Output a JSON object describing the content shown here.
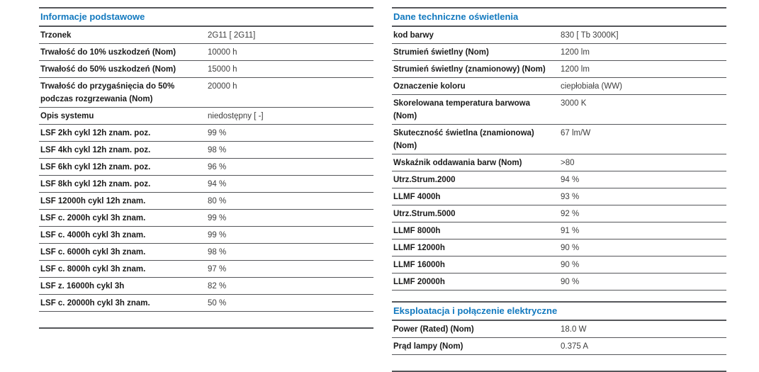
{
  "colors": {
    "header_blue": "#1279bf",
    "rule_gray": "#55565a",
    "label_color": "#1a1a1a",
    "value_color": "#3d3d3d",
    "background": "#ffffff"
  },
  "columns": [
    {
      "name": "left",
      "trailing_rule": true,
      "sections": [
        {
          "title": "Informacje podstawowe",
          "rows": [
            {
              "label": "Trzonek",
              "value": "2G11 [ 2G11]"
            },
            {
              "label": "Trwałość do 10% uszkodzeń (Nom)",
              "value": "10000 h"
            },
            {
              "label": "Trwałość do 50% uszkodzeń (Nom)",
              "value": "15000 h"
            },
            {
              "label": "Trwałość do przygaśnięcia do 50% podczas rozgrzewania (Nom)",
              "value": "20000 h"
            },
            {
              "label": "Opis systemu",
              "value": "niedostępny [ -]"
            },
            {
              "label": "LSF 2kh cykl 12h znam. poz.",
              "value": "99 %"
            },
            {
              "label": "LSF 4kh cykl 12h znam. poz.",
              "value": "98 %"
            },
            {
              "label": "LSF 6kh cykl 12h znam. poz.",
              "value": "96 %"
            },
            {
              "label": "LSF 8kh cykl 12h znam. poz.",
              "value": "94 %"
            },
            {
              "label": "LSF 12000h cykl 12h znam.",
              "value": "80 %"
            },
            {
              "label": "LSF c. 2000h cykl 3h znam.",
              "value": "99 %"
            },
            {
              "label": "LSF c. 4000h cykl 3h znam.",
              "value": "99 %"
            },
            {
              "label": "LSF c. 6000h cykl 3h znam.",
              "value": "98 %"
            },
            {
              "label": "LSF c. 8000h cykl 3h znam.",
              "value": "97 %"
            },
            {
              "label": "LSF z. 16000h cykl 3h",
              "value": "82 %"
            },
            {
              "label": "LSF c. 20000h cykl 3h znam.",
              "value": "50 %"
            }
          ]
        }
      ]
    },
    {
      "name": "right",
      "trailing_rule": true,
      "sections": [
        {
          "title": "Dane techniczne oświetlenia",
          "rows": [
            {
              "label": "kod barwy",
              "value": "830 [ Tb 3000K]"
            },
            {
              "label": "Strumień świetlny (Nom)",
              "value": "1200 lm"
            },
            {
              "label": "Strumień świetlny (znamionowy) (Nom)",
              "value": "1200 lm"
            },
            {
              "label": "Oznaczenie koloru",
              "value": "ciepłobiała (WW)"
            },
            {
              "label": "Skorelowana temperatura barwowa (Nom)",
              "value": "3000 K"
            },
            {
              "label": "Skuteczność świetlna (znamionowa) (Nom)",
              "value": "67 lm/W"
            },
            {
              "label": "Wskaźnik oddawania barw (Nom)",
              "value": ">80"
            },
            {
              "label": "Utrz.Strum.2000",
              "value": "94 %"
            },
            {
              "label": "LLMF 4000h",
              "value": "93 %"
            },
            {
              "label": "Utrz.Strum.5000",
              "value": "92 %"
            },
            {
              "label": "LLMF 8000h",
              "value": "91 %"
            },
            {
              "label": "LLMF 12000h",
              "value": "90 %"
            },
            {
              "label": "LLMF 16000h",
              "value": "90 %"
            },
            {
              "label": "LLMF 20000h",
              "value": "90 %"
            }
          ]
        },
        {
          "title": "Eksploatacja i połączenie elektryczne",
          "rows": [
            {
              "label": "Power (Rated) (Nom)",
              "value": "18.0 W"
            },
            {
              "label": "Prąd lampy (Nom)",
              "value": "0.375 A"
            }
          ]
        }
      ]
    }
  ]
}
